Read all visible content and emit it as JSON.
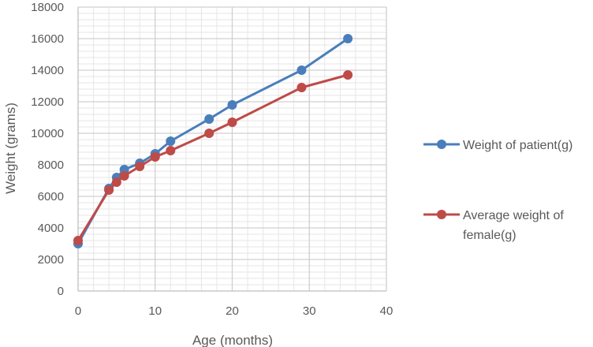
{
  "chart_data": {
    "type": "scatter",
    "xlabel": "Age (months)",
    "ylabel": "Weight (grams)",
    "xlim": [
      0,
      40
    ],
    "ylim": [
      0,
      18000
    ],
    "x_ticks": [
      0,
      10,
      20,
      30,
      40
    ],
    "y_ticks": [
      0,
      2000,
      4000,
      6000,
      8000,
      10000,
      12000,
      14000,
      16000,
      18000
    ],
    "grid": true,
    "legend_position": "right",
    "series": [
      {
        "name": "Weight of patient(g)",
        "color": "#4a7ebb",
        "points": [
          [
            0,
            3000
          ],
          [
            4,
            6500
          ],
          [
            5,
            7200
          ],
          [
            6,
            7700
          ],
          [
            8,
            8100
          ],
          [
            10,
            8700
          ],
          [
            12,
            9500
          ],
          [
            17,
            10900
          ],
          [
            20,
            11800
          ],
          [
            29,
            14000
          ],
          [
            35,
            16000
          ]
        ]
      },
      {
        "name": "Average weight of female(g)",
        "legend_lines": [
          "Average weight of",
          "female(g)"
        ],
        "color": "#be4b48",
        "points": [
          [
            0,
            3200
          ],
          [
            4,
            6400
          ],
          [
            5,
            6900
          ],
          [
            6,
            7300
          ],
          [
            8,
            7900
          ],
          [
            10,
            8500
          ],
          [
            12,
            8900
          ],
          [
            17,
            10000
          ],
          [
            20,
            10700
          ],
          [
            29,
            12900
          ],
          [
            35,
            13700
          ]
        ]
      }
    ]
  }
}
